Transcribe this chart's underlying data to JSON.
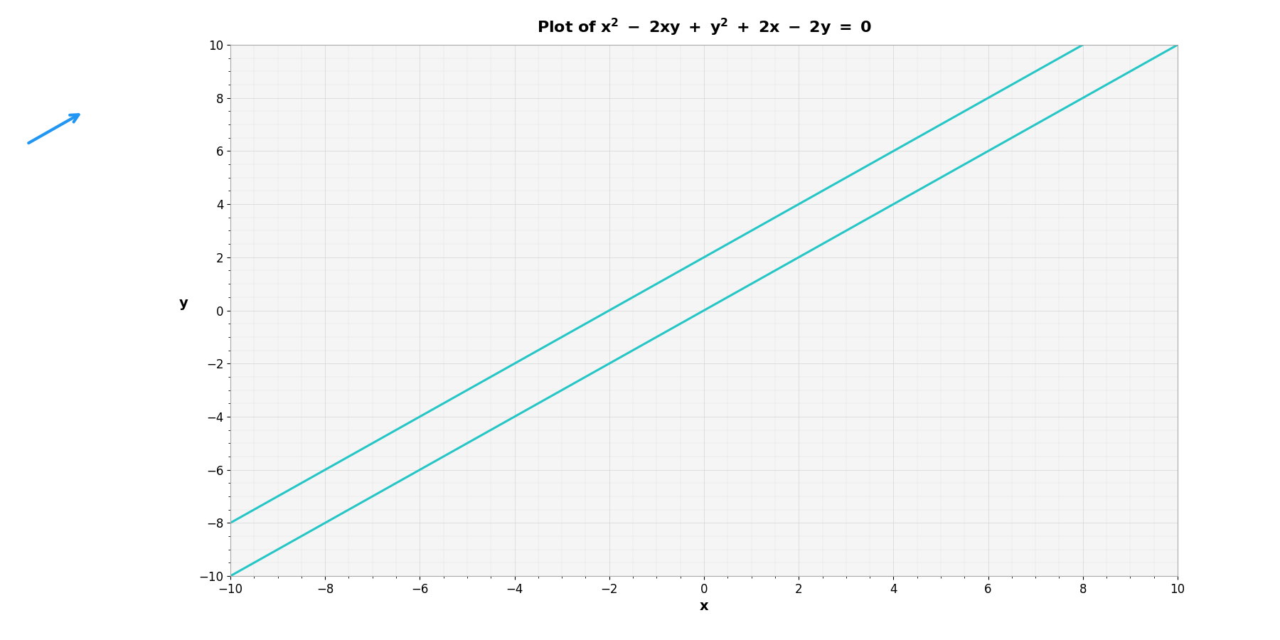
{
  "title": "Plot of $x^2$ - 2xy + $y^2$ + 2x - 2y = 0",
  "title_plain": "Plot of x^2 - 2xy + y^2 + 2x - 2y = 0",
  "xlabel": "x",
  "ylabel": "y",
  "xlim": [
    -10,
    10
  ],
  "ylim": [
    -10,
    10
  ],
  "xticks": [
    -10,
    -8,
    -6,
    -4,
    -2,
    0,
    2,
    4,
    6,
    8,
    10
  ],
  "yticks": [
    -10,
    -8,
    -6,
    -4,
    -2,
    0,
    2,
    4,
    6,
    8,
    10
  ],
  "line_color": "#26C6C6",
  "line_width": 2.2,
  "background_color": "#ffffff",
  "plot_bg_color": "#f5f5f5",
  "grid_color": "#cccccc",
  "grid_alpha": 0.8,
  "line1_slope": 1,
  "line1_intercept": 0,
  "line2_slope": 1,
  "line2_intercept": 2,
  "title_fontsize": 16,
  "axis_label_fontsize": 14,
  "tick_fontsize": 12
}
